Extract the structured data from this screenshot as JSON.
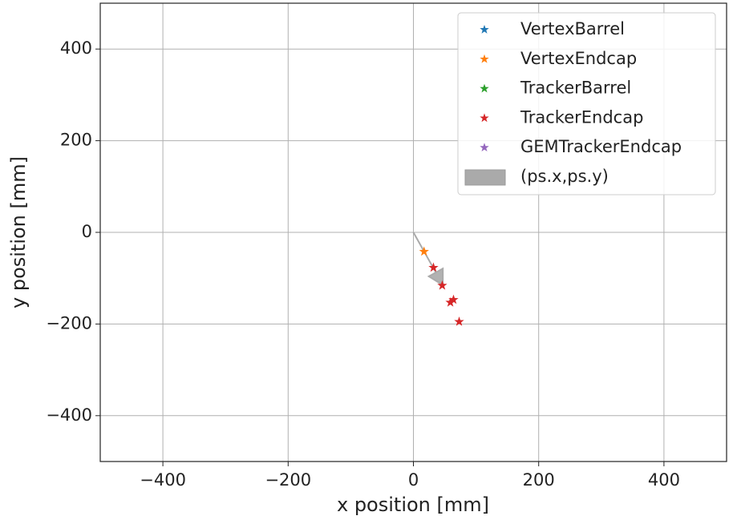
{
  "chart_data": {
    "type": "scatter",
    "xlabel": "x position [mm]",
    "ylabel": "y position [mm]",
    "xlim": [
      -500,
      500
    ],
    "ylim": [
      -500,
      500
    ],
    "xticks": [
      {
        "value": -400,
        "label": "−400"
      },
      {
        "value": -200,
        "label": "−200"
      },
      0,
      200,
      400
    ],
    "yticks": [
      {
        "value": -400,
        "label": "−400"
      },
      {
        "value": -200,
        "label": "−200"
      },
      0,
      200,
      400
    ],
    "grid": true,
    "legend": "upper right",
    "series": [
      {
        "name": "VertexBarrel",
        "color": "#1f77b4",
        "x": [],
        "y": []
      },
      {
        "name": "VertexEndcap",
        "color": "#ff7f0e",
        "x": [
          17
        ],
        "y": [
          -42
        ]
      },
      {
        "name": "TrackerBarrel",
        "color": "#2ca02c",
        "x": [],
        "y": []
      },
      {
        "name": "TrackerEndcap",
        "color": "#d62728",
        "x": [
          32,
          46,
          59,
          64,
          73
        ],
        "y": [
          -77,
          -116,
          -153,
          -147,
          -195
        ]
      },
      {
        "name": "GEMTrackerEndcap",
        "color": "#9467bd",
        "x": [],
        "y": []
      }
    ],
    "arrow": {
      "name": "(ps.x,ps.y)",
      "color": "#aaaaaa",
      "x": [
        0,
        47
      ],
      "y": [
        0,
        -115
      ]
    }
  }
}
